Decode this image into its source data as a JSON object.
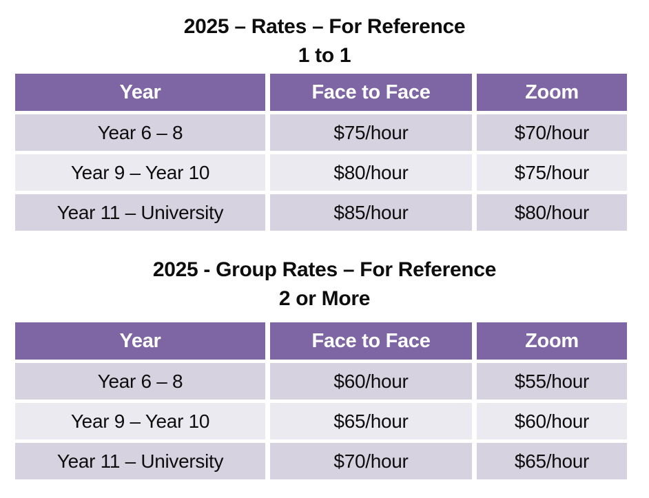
{
  "colors": {
    "header_bg": "#7d66a3",
    "row_dark": "#d6d2e0",
    "row_light": "#ebeaf0",
    "header_text": "#ffffff",
    "body_text": "#0d0d0d"
  },
  "sections": [
    {
      "title_line1": "2025 – Rates – For Reference",
      "title_line2": "1 to 1",
      "table": {
        "columns": [
          "Year",
          "Face to Face",
          "Zoom"
        ],
        "rows": [
          [
            "Year 6 – 8",
            "$75/hour",
            "$70/hour"
          ],
          [
            "Year 9 – Year 10",
            "$80/hour",
            "$75/hour"
          ],
          [
            "Year 11 – University",
            "$85/hour",
            "$80/hour"
          ]
        ]
      }
    },
    {
      "title_line1": "2025 - Group Rates – For Reference",
      "title_line2": "2 or More",
      "table": {
        "columns": [
          "Year",
          "Face to Face",
          "Zoom"
        ],
        "rows": [
          [
            "Year 6 – 8",
            "$60/hour",
            "$55/hour"
          ],
          [
            "Year 9 – Year 10",
            "$65/hour",
            "$60/hour"
          ],
          [
            "Year 11 – University",
            "$70/hour",
            "$65/hour"
          ]
        ]
      }
    }
  ]
}
